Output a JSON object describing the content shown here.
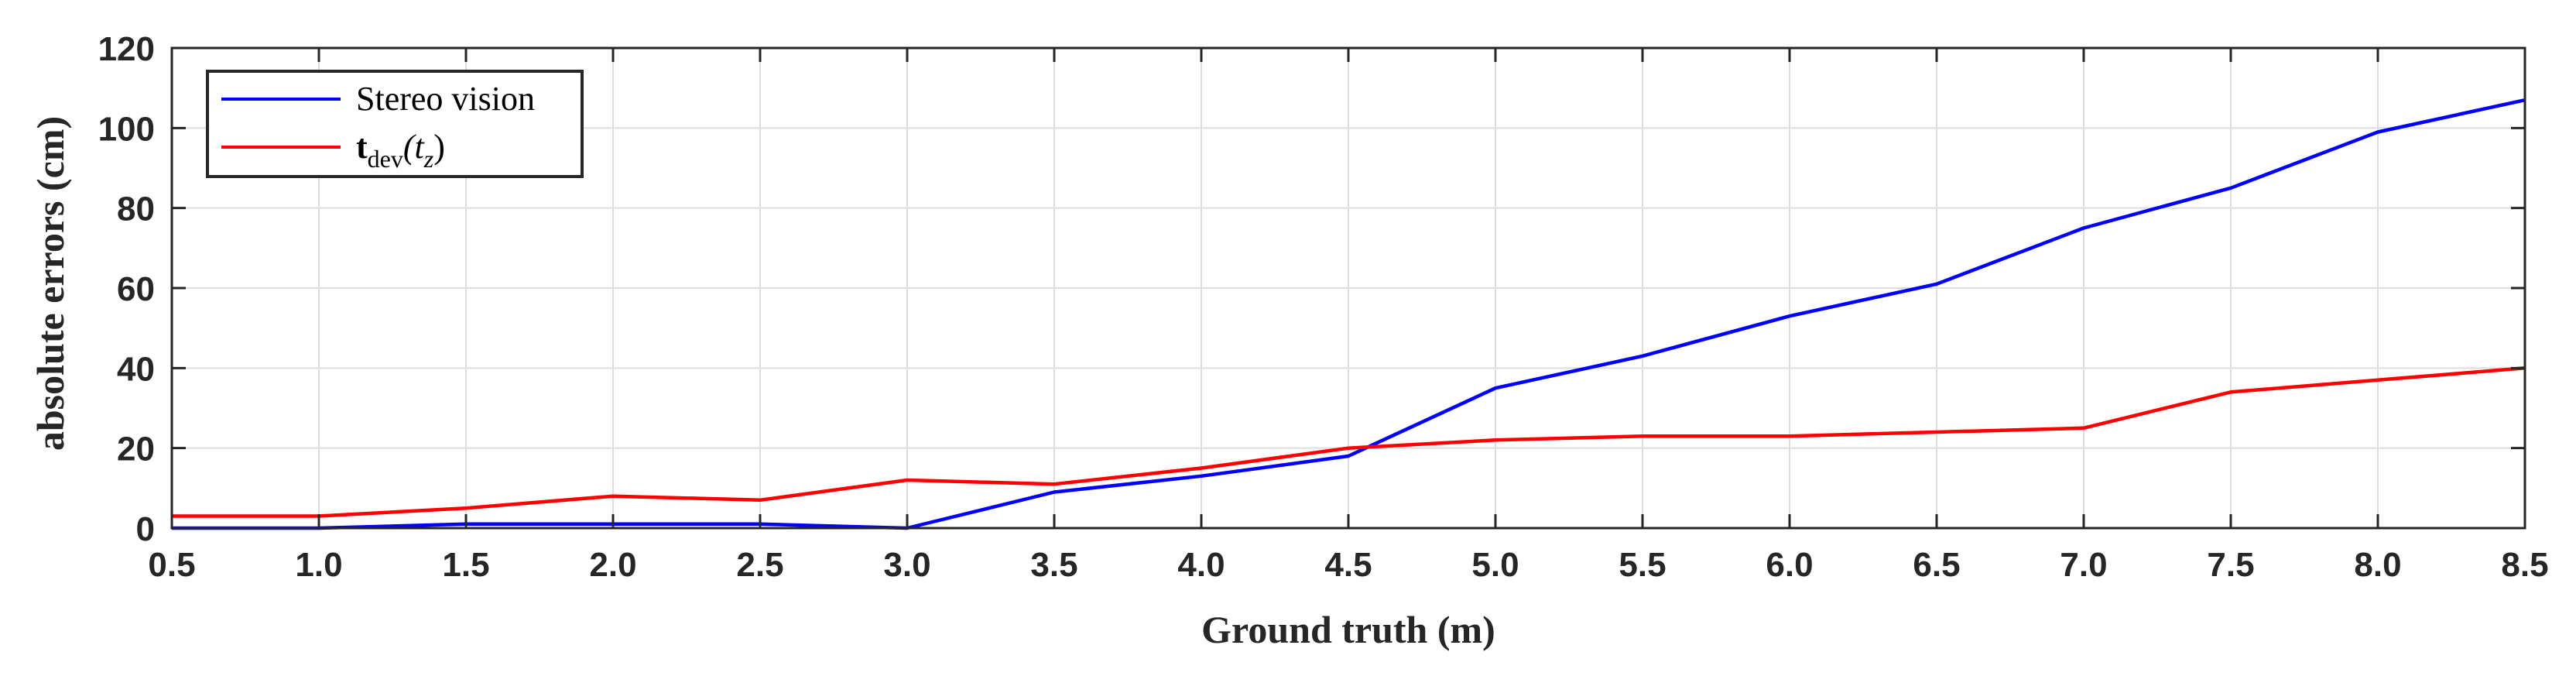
{
  "chart_data": {
    "type": "line",
    "xlabel": "Ground truth (m)",
    "ylabel": "absolute errors (cm)",
    "xlim": [
      0.5,
      8.5
    ],
    "ylim": [
      0,
      120
    ],
    "xticks": [
      "0.5",
      "1.0",
      "1.5",
      "2.0",
      "2.5",
      "3.0",
      "3.5",
      "4.0",
      "4.5",
      "5.0",
      "5.5",
      "6.0",
      "6.5",
      "7.0",
      "7.5",
      "8.0",
      "8.5"
    ],
    "yticks": [
      "0",
      "20",
      "40",
      "60",
      "80",
      "100",
      "120"
    ],
    "grid": true,
    "legend_position": "top-left",
    "x": [
      0.5,
      1.0,
      1.5,
      2.0,
      2.5,
      3.0,
      3.5,
      4.0,
      4.5,
      5.0,
      5.5,
      6.0,
      6.5,
      7.0,
      7.5,
      8.0,
      8.5
    ],
    "series": [
      {
        "name": "Stereo vision",
        "color": "#0000ff",
        "values": [
          0,
          0,
          1,
          1,
          1,
          0,
          9,
          13,
          18,
          35,
          43,
          53,
          61,
          75,
          85,
          99,
          107
        ]
      },
      {
        "name_main": "t",
        "name_sub": "dev",
        "name_arg": "(t",
        "name_arg_sub": "z",
        "name_close": ")",
        "color": "#ff0000",
        "values": [
          3,
          3,
          5,
          8,
          7,
          12,
          11,
          15,
          20,
          22,
          23,
          23,
          24,
          25,
          34,
          37,
          40
        ]
      }
    ]
  }
}
